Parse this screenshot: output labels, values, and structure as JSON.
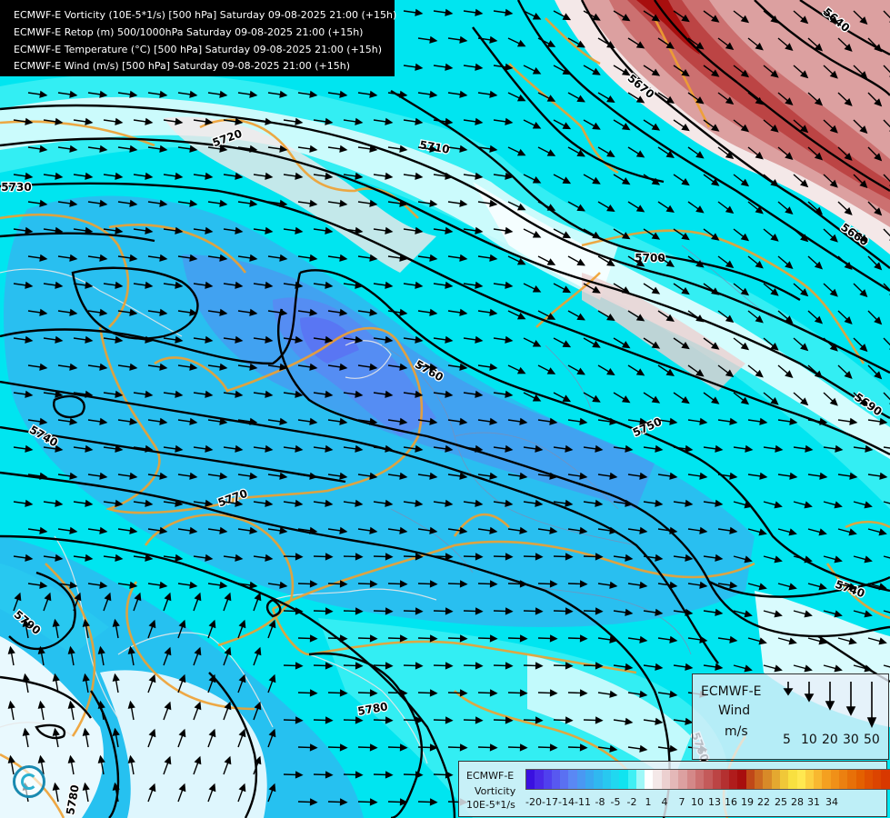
{
  "header": {
    "lines": [
      "ECMWF-E Vorticity (10E-5*1/s) [500 hPa] Saturday 09-08-2025 21:00 (+15h)",
      "ECMWF-E Retop (m) 500/1000hPa Saturday 09-08-2025 21:00 (+15h)",
      "ECMWF-E Temperature (°C) [500 hPa] Saturday 09-08-2025 21:00 (+15h)",
      "ECMWF-E Wind (m/s) [500 hPa] Saturday 09-08-2025 21:00 (+15h)"
    ]
  },
  "contour_labels": [
    {
      "text": "5640",
      "rotate": 40
    },
    {
      "text": "5670",
      "rotate": 40
    },
    {
      "text": "5720",
      "rotate": -20
    },
    {
      "text": "5710",
      "rotate": 10
    },
    {
      "text": "5730",
      "rotate": 0
    },
    {
      "text": "5700",
      "rotate": 0
    },
    {
      "text": "5660",
      "rotate": 35
    },
    {
      "text": "5760",
      "rotate": 30
    },
    {
      "text": "5750",
      "rotate": -25
    },
    {
      "text": "5690",
      "rotate": 35
    },
    {
      "text": "5740",
      "rotate": 30
    },
    {
      "text": "5770",
      "rotate": -20
    },
    {
      "text": "5740",
      "rotate": 20
    },
    {
      "text": "5790",
      "rotate": 40
    },
    {
      "text": "5780",
      "rotate": -10
    },
    {
      "text": "5780",
      "rotate": -80
    },
    {
      "text": "5760",
      "rotate": 70
    }
  ],
  "wind_legend": {
    "model": "ECMWF-E",
    "title": "Wind",
    "unit": "m/s",
    "speeds": [
      "5",
      "10",
      "20",
      "30",
      "50"
    ]
  },
  "vorticity_legend": {
    "model": "ECMWF-E",
    "title": "Vorticity",
    "unit": "10E-5*1/s",
    "ticks": [
      "-20",
      "-17",
      "-14",
      "-11",
      "-8",
      "-5",
      "-2",
      "1",
      "4",
      "7",
      "10",
      "13",
      "16",
      "19",
      "22",
      "25",
      "28",
      "31",
      "34"
    ],
    "colors": [
      "#3a10e0",
      "#4a28e8",
      "#5040ee",
      "#5858f0",
      "#5a70f2",
      "#5a88f4",
      "#4a98f2",
      "#3aa8f0",
      "#30b8f0",
      "#28c8f0",
      "#20d8f0",
      "#10e4f0",
      "#40f0f4",
      "#a0f8f8",
      "#ffffff",
      "#f4e8e8",
      "#ecd0d0",
      "#e4b8b8",
      "#dca0a0",
      "#d48888",
      "#cc7070",
      "#c45a5a",
      "#bc4444",
      "#b43030",
      "#b01c1c",
      "#a80e0e",
      "#c04818",
      "#cc6a20",
      "#d88a28",
      "#e4a830",
      "#f0c838",
      "#f8e040",
      "#ffe850",
      "#fcd040",
      "#f8b830",
      "#f4a020",
      "#f09018",
      "#ec8010",
      "#e87008",
      "#e46000",
      "#e05000",
      "#dc4400",
      "#d83800",
      "#d43000",
      "#d02800",
      "#cc2000",
      "#c81800"
    ]
  },
  "colors": {
    "background_vorticity": "#00e5f0",
    "contour": "#000000",
    "temperature_isotherm": "#f0a030",
    "coastline": "#e8e8e8",
    "header_bg": "#000000"
  }
}
